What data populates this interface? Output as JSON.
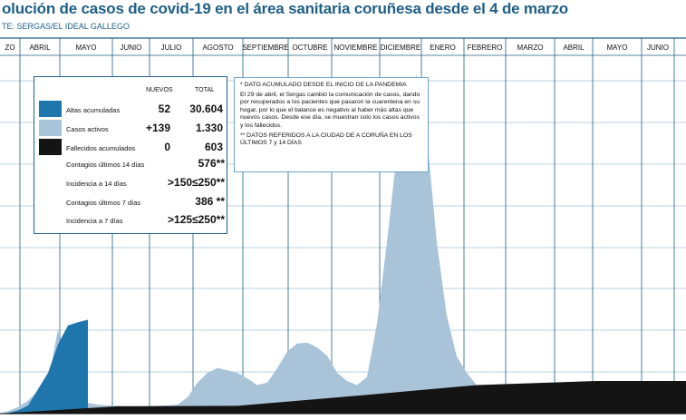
{
  "header": {
    "title": "olución de casos de covid-19 en el área sanitaria coruñesa desde el 4 de marzo",
    "source": "TE: SERGAS/EL IDEAL GALLEGO"
  },
  "colors": {
    "activos": "#a9c3d9",
    "altas": "#1f76ad",
    "fallecidos": "#141414",
    "accent": "#1f5f86"
  },
  "chart_data": {
    "type": "area",
    "x_unit": "semanas desde el 4 de marzo de 2020",
    "months": [
      "ZO",
      "ABRIL",
      "MAYO",
      "JUNIO",
      "JULIO",
      "AGOSTO",
      "SEPTIEMBRE",
      "OCTUBRE",
      "NOVIEMBRE",
      "DICIEMBRE",
      "ENERO",
      "FEBRERO",
      "MARZO",
      "ABRIL",
      "MAYO",
      "JUNIO"
    ],
    "series": [
      {
        "name": "Casos activos",
        "x": [
          0,
          1,
          2,
          3,
          4,
          5,
          6,
          7,
          8,
          9,
          10,
          11,
          12,
          13,
          14,
          15,
          16,
          17,
          18,
          19,
          20,
          21,
          22,
          23,
          24,
          25,
          26,
          27,
          28,
          29,
          30,
          31,
          32,
          33,
          34,
          35,
          36,
          37,
          38,
          39,
          40,
          41,
          42,
          43,
          44,
          45,
          46,
          47,
          48,
          49,
          50,
          51,
          52,
          53,
          54,
          55,
          56,
          57,
          58,
          59,
          60,
          61,
          62,
          63,
          64,
          65,
          66,
          67,
          68,
          69
        ],
        "values": [
          0,
          30,
          80,
          160,
          280,
          370,
          1040,
          230,
          160,
          130,
          110,
          100,
          95,
          90,
          90,
          90,
          95,
          100,
          110,
          200,
          380,
          500,
          560,
          530,
          500,
          430,
          350,
          380,
          560,
          760,
          860,
          870,
          810,
          710,
          500,
          400,
          350,
          450,
          1100,
          2100,
          3200,
          3900,
          4150,
          3400,
          2100,
          1200,
          700,
          500,
          350,
          250,
          250,
          270,
          280,
          290,
          300,
          300,
          260,
          230,
          210,
          200,
          200,
          220,
          230,
          240,
          230,
          210,
          200,
          220,
          250,
          300
        ]
      },
      {
        "name": "Altas acumuladas",
        "x": [
          0,
          1,
          2,
          3,
          4,
          5,
          6,
          7,
          8,
          9
        ],
        "values": [
          0,
          10,
          40,
          100,
          300,
          500,
          850,
          1080,
          1120,
          1150
        ]
      },
      {
        "name": "Fallecidos acumulados",
        "x": [
          0,
          12,
          24,
          36,
          48,
          60,
          69
        ],
        "values": [
          0,
          90,
          95,
          220,
          350,
          400,
          400
        ]
      }
    ],
    "legend": {
      "col_nuevos": "NUEVOS",
      "col_total": "TOTAL",
      "rows": [
        {
          "label": "Altas acumuladas",
          "nuevos": "52",
          "total": "30.604"
        },
        {
          "label": "Casos activos",
          "nuevos": "+139",
          "total": "1.330"
        },
        {
          "label": "Fallecidos acumulados",
          "nuevos": "0",
          "total": "603"
        }
      ],
      "stats": [
        {
          "label": "Contagios últimos 14 días",
          "value": "576**"
        },
        {
          "label": "Incidencia a 14 días",
          "value": ">150≤250**"
        },
        {
          "label": "Contagios últimos 7 días",
          "value": "386 **"
        },
        {
          "label": "Incidencia a 7 días",
          "value": ">125≤250**"
        }
      ]
    },
    "notes": [
      "* DATO ACUMULADO DESDE EL INICIO DE LA PANDEMIA",
      "El 29 de abril, el Sergas cambió la comunicación de casos, dando por recuperados a los pacientes que pasaron la cuarentena en su hogar, por lo que el balance es negativo al haber más altas que nuevos casos. Desde ese día, se muestran solo los casos activos y los fallecidos.",
      "** DATOS REFERIDOS A LA CIUDAD DE A CORUÑA EN LOS ÚLTIMOS 7 y 14 DÍAS"
    ]
  }
}
